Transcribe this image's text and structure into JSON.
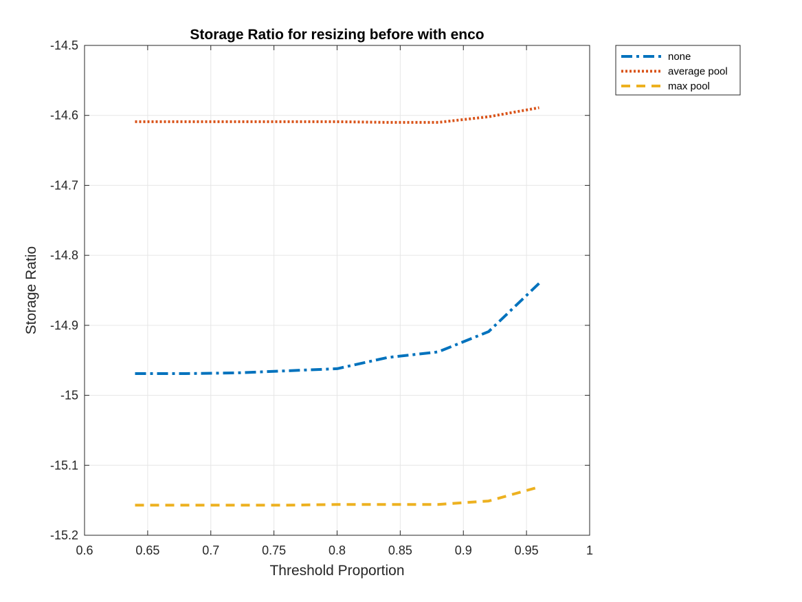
{
  "chart_data": {
    "type": "line",
    "title": "Storage Ratio for resizing before with enco",
    "xlabel": "Threshold Proportion",
    "ylabel": "Storage Ratio",
    "xlim": [
      0.6,
      1
    ],
    "ylim": [
      -15.2,
      -14.5
    ],
    "xticks": [
      0.6,
      0.65,
      0.7,
      0.75,
      0.8,
      0.85,
      0.9,
      0.95,
      1
    ],
    "xtick_labels": [
      "0.6",
      "0.65",
      "0.7",
      "0.75",
      "0.8",
      "0.85",
      "0.9",
      "0.95",
      "1"
    ],
    "yticks": [
      -15.2,
      -15.1,
      -15.0,
      -14.9,
      -14.8,
      -14.7,
      -14.6,
      -14.5
    ],
    "ytick_labels": [
      "-15.2",
      "-15.1",
      "-15",
      "-14.9",
      "-14.8",
      "-14.7",
      "-14.6",
      "-14.5"
    ],
    "grid": true,
    "legend_position": "outside-top-right",
    "x": [
      0.64,
      0.68,
      0.72,
      0.76,
      0.8,
      0.84,
      0.88,
      0.92,
      0.96
    ],
    "series": [
      {
        "name": "none",
        "color": "#0072BD",
        "line_style": "dash-dot",
        "values": [
          -14.969,
          -14.969,
          -14.968,
          -14.965,
          -14.962,
          -14.946,
          -14.938,
          -14.909,
          -14.84
        ]
      },
      {
        "name": "average pool",
        "color": "#D95319",
        "line_style": "dotted",
        "values": [
          -14.609,
          -14.609,
          -14.609,
          -14.609,
          -14.609,
          -14.61,
          -14.61,
          -14.602,
          -14.589
        ]
      },
      {
        "name": "max pool",
        "color": "#EDB120",
        "line_style": "dashed",
        "values": [
          -15.157,
          -15.157,
          -15.157,
          -15.157,
          -15.156,
          -15.156,
          -15.156,
          -15.151,
          -15.131
        ]
      }
    ]
  }
}
